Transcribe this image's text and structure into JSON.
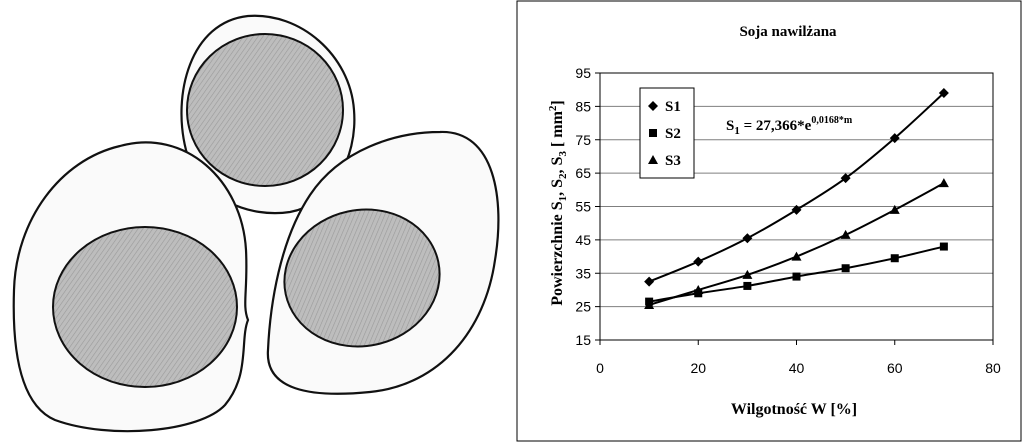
{
  "chart_data": {
    "type": "line",
    "title": "Soja nawilżana",
    "xlabel": "Wilgotność W [%]",
    "ylabel": {
      "parts": [
        "Powierzchnie S",
        "1",
        ", S",
        "2",
        ", S",
        "3",
        " [ mm",
        "2",
        "]"
      ]
    },
    "xlim": [
      0,
      80
    ],
    "ylim": [
      15,
      95
    ],
    "x_ticks": [
      0,
      20,
      40,
      60,
      80
    ],
    "y_ticks": [
      15,
      25,
      35,
      45,
      55,
      65,
      75,
      85,
      95
    ],
    "grid": "horizontal",
    "legend_position": "top-left",
    "x": [
      10,
      20,
      30,
      40,
      50,
      60,
      70
    ],
    "series": [
      {
        "name": "S1",
        "marker": "diamond",
        "values": [
          32.5,
          38.5,
          45.5,
          54,
          63.5,
          75.5,
          89
        ]
      },
      {
        "name": "S2",
        "marker": "square",
        "values": [
          26.5,
          29,
          31.2,
          34,
          36.5,
          39.5,
          43
        ]
      },
      {
        "name": "S3",
        "marker": "triangle",
        "values": [
          25.5,
          30,
          34.5,
          40,
          46.5,
          54,
          62
        ]
      }
    ],
    "annotation": {
      "lhs": "S",
      "lhs_sub": "1",
      "rhs": " = 27,366*e",
      "rhs_sup": "0,0168*m"
    },
    "colors": {
      "line": "#000000",
      "grid": "#7f7f7f",
      "frame": "#000000"
    }
  }
}
